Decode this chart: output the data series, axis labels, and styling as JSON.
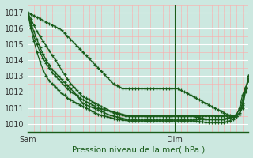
{
  "xlabel": "Pression niveau de la mer( hPa )",
  "bg_color": "#cce8e0",
  "plot_bg_color": "#cce8e0",
  "grid_major_color": "#ffffff",
  "grid_minor_color": "#ffaaaa",
  "line_color": "#1a5c1a",
  "ylim": [
    1009.5,
    1017.5
  ],
  "yticks": [
    1010,
    1011,
    1012,
    1013,
    1014,
    1015,
    1016,
    1017
  ],
  "xtick_labels": [
    "Sam",
    "",
    "Dim"
  ],
  "xtick_positions": [
    0,
    24,
    48
  ],
  "total_points": 73,
  "dim_line_x": 48,
  "series": [
    [
      1017.0,
      1016.9,
      1016.8,
      1016.7,
      1016.6,
      1016.5,
      1016.4,
      1016.3,
      1016.2,
      1016.1,
      1016.0,
      1015.9,
      1015.7,
      1015.5,
      1015.3,
      1015.1,
      1014.9,
      1014.7,
      1014.5,
      1014.3,
      1014.1,
      1013.9,
      1013.7,
      1013.5,
      1013.3,
      1013.1,
      1012.9,
      1012.7,
      1012.5,
      1012.4,
      1012.3,
      1012.2,
      1012.2,
      1012.2,
      1012.2,
      1012.2,
      1012.2,
      1012.2,
      1012.2,
      1012.2,
      1012.2,
      1012.2,
      1012.2,
      1012.2,
      1012.2,
      1012.2,
      1012.2,
      1012.2,
      1012.2,
      1012.2,
      1012.1,
      1012.0,
      1011.9,
      1011.8,
      1011.7,
      1011.6,
      1011.5,
      1011.4,
      1011.3,
      1011.2,
      1011.1,
      1011.0,
      1010.9,
      1010.8,
      1010.7,
      1010.6,
      1010.55,
      1010.5,
      1010.5,
      1010.6,
      1011.0,
      1012.0,
      1013.0
    ],
    [
      1017.0,
      1016.6,
      1016.2,
      1015.8,
      1015.5,
      1015.2,
      1014.9,
      1014.6,
      1014.3,
      1014.0,
      1013.7,
      1013.4,
      1013.1,
      1012.8,
      1012.5,
      1012.3,
      1012.1,
      1011.9,
      1011.7,
      1011.6,
      1011.5,
      1011.4,
      1011.3,
      1011.2,
      1011.1,
      1011.0,
      1010.9,
      1010.8,
      1010.7,
      1010.65,
      1010.6,
      1010.55,
      1010.5,
      1010.5,
      1010.5,
      1010.5,
      1010.5,
      1010.5,
      1010.5,
      1010.5,
      1010.5,
      1010.5,
      1010.5,
      1010.5,
      1010.5,
      1010.5,
      1010.5,
      1010.5,
      1010.5,
      1010.5,
      1010.5,
      1010.5,
      1010.5,
      1010.5,
      1010.5,
      1010.5,
      1010.5,
      1010.5,
      1010.5,
      1010.5,
      1010.5,
      1010.5,
      1010.5,
      1010.5,
      1010.5,
      1010.5,
      1010.5,
      1010.5,
      1010.5,
      1010.6,
      1011.2,
      1012.2,
      1013.0
    ],
    [
      1017.0,
      1016.4,
      1015.8,
      1015.3,
      1014.8,
      1014.4,
      1014.0,
      1013.7,
      1013.4,
      1013.2,
      1013.0,
      1012.8,
      1012.6,
      1012.4,
      1012.2,
      1012.0,
      1011.8,
      1011.6,
      1011.5,
      1011.4,
      1011.3,
      1011.2,
      1011.1,
      1011.0,
      1010.95,
      1010.9,
      1010.85,
      1010.8,
      1010.75,
      1010.7,
      1010.65,
      1010.6,
      1010.55,
      1010.5,
      1010.5,
      1010.5,
      1010.5,
      1010.5,
      1010.5,
      1010.5,
      1010.5,
      1010.5,
      1010.5,
      1010.5,
      1010.5,
      1010.5,
      1010.5,
      1010.5,
      1010.5,
      1010.5,
      1010.5,
      1010.5,
      1010.5,
      1010.5,
      1010.5,
      1010.45,
      1010.4,
      1010.35,
      1010.3,
      1010.3,
      1010.3,
      1010.3,
      1010.3,
      1010.3,
      1010.3,
      1010.35,
      1010.4,
      1010.45,
      1010.5,
      1010.7,
      1011.3,
      1012.2,
      1012.8
    ],
    [
      1017.0,
      1016.2,
      1015.5,
      1015.0,
      1014.5,
      1014.1,
      1013.8,
      1013.5,
      1013.2,
      1013.0,
      1012.8,
      1012.6,
      1012.4,
      1012.2,
      1012.0,
      1011.9,
      1011.8,
      1011.5,
      1011.3,
      1011.2,
      1011.1,
      1011.05,
      1011.0,
      1010.9,
      1010.8,
      1010.7,
      1010.6,
      1010.55,
      1010.5,
      1010.45,
      1010.4,
      1010.35,
      1010.3,
      1010.3,
      1010.3,
      1010.3,
      1010.3,
      1010.3,
      1010.3,
      1010.3,
      1010.3,
      1010.3,
      1010.3,
      1010.3,
      1010.3,
      1010.3,
      1010.3,
      1010.3,
      1010.3,
      1010.3,
      1010.3,
      1010.3,
      1010.3,
      1010.3,
      1010.3,
      1010.3,
      1010.3,
      1010.3,
      1010.3,
      1010.3,
      1010.3,
      1010.3,
      1010.3,
      1010.3,
      1010.3,
      1010.35,
      1010.4,
      1010.5,
      1010.6,
      1010.9,
      1011.5,
      1012.2,
      1012.7
    ],
    [
      1017.0,
      1016.0,
      1015.2,
      1014.5,
      1013.9,
      1013.4,
      1013.0,
      1012.7,
      1012.5,
      1012.3,
      1012.1,
      1011.9,
      1011.8,
      1011.6,
      1011.5,
      1011.4,
      1011.3,
      1011.2,
      1011.1,
      1011.0,
      1010.9,
      1010.8,
      1010.7,
      1010.6,
      1010.55,
      1010.5,
      1010.45,
      1010.4,
      1010.35,
      1010.3,
      1010.28,
      1010.25,
      1010.22,
      1010.2,
      1010.2,
      1010.2,
      1010.2,
      1010.2,
      1010.2,
      1010.2,
      1010.2,
      1010.2,
      1010.2,
      1010.2,
      1010.2,
      1010.2,
      1010.2,
      1010.2,
      1010.2,
      1010.2,
      1010.2,
      1010.2,
      1010.2,
      1010.2,
      1010.2,
      1010.18,
      1010.15,
      1010.12,
      1010.1,
      1010.1,
      1010.1,
      1010.1,
      1010.1,
      1010.1,
      1010.1,
      1010.15,
      1010.2,
      1010.3,
      1010.5,
      1011.0,
      1011.8,
      1012.3,
      1012.7
    ]
  ]
}
